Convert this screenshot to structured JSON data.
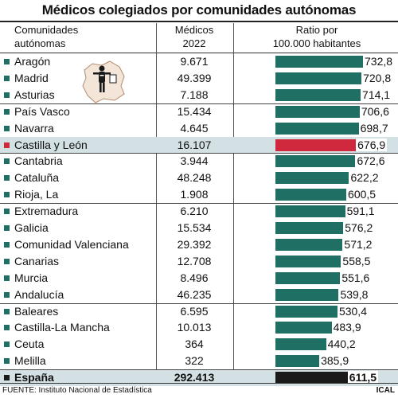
{
  "title": "Médicos colegiados por comunidades autónomas",
  "headers": {
    "col1_line1": "Comunidades",
    "col1_line2": "autónomas",
    "col2_line1": "Médicos",
    "col2_line2": "2022",
    "col3_line1": "Ratio por",
    "col3_line2": "100.000 habitantes"
  },
  "footer": "FUENTE: Instituto Nacional de Estadística",
  "credit": "ICAL",
  "colors": {
    "bar": "#1f6f64",
    "highlight_bar": "#d0283c",
    "total_bar": "#1a1a1a",
    "highlight_row": "#d3e0e4"
  },
  "chart_data": {
    "type": "bar",
    "orientation": "horizontal",
    "title": "Médicos colegiados por comunidades autónomas",
    "categories": [
      "Aragón",
      "Madrid",
      "Asturias",
      "País Vasco",
      "Navarra",
      "Castilla y León",
      "Cantabria",
      "Cataluña",
      "Rioja, La",
      "Extremadura",
      "Galicia",
      "Comunidad Valenciana",
      "Canarias",
      "Murcia",
      "Andalucía",
      "Baleares",
      "Castilla-La Mancha",
      "Ceuta",
      "Melilla",
      "España"
    ],
    "series": [
      {
        "name": "Médicos 2022",
        "labels": [
          "9.671",
          "49.399",
          "7.188",
          "15.434",
          "4.645",
          "16.107",
          "3.944",
          "48.248",
          "1.908",
          "6.210",
          "15.534",
          "29.392",
          "12.708",
          "8.496",
          "46.235",
          "6.595",
          "10.013",
          "364",
          "322",
          "292.413"
        ],
        "values": [
          9671,
          49399,
          7188,
          15434,
          4645,
          16107,
          3944,
          48248,
          1908,
          6210,
          15534,
          29392,
          12708,
          8496,
          46235,
          6595,
          10013,
          364,
          322,
          292413
        ]
      },
      {
        "name": "Ratio por 100.000 habitantes",
        "labels": [
          "732,8",
          "720,8",
          "714,1",
          "706,6",
          "698,7",
          "676,9",
          "672,6",
          "622,2",
          "600,5",
          "591,1",
          "576,2",
          "571,2",
          "558,5",
          "551,6",
          "539,8",
          "530,4",
          "483,9",
          "440,2",
          "385,9",
          "611,5"
        ],
        "values": [
          732.8,
          720.8,
          714.1,
          706.6,
          698.7,
          676.9,
          672.6,
          622.2,
          600.5,
          591.1,
          576.2,
          571.2,
          558.5,
          551.6,
          539.8,
          530.4,
          483.9,
          440.2,
          385.9,
          611.5
        ]
      }
    ],
    "highlighted": [
      "Castilla y León"
    ],
    "total": "España",
    "groups_end_after": [
      2,
      5,
      8,
      14,
      18
    ],
    "xlim": [
      0,
      732.8
    ],
    "grid": false,
    "legend": "none"
  }
}
